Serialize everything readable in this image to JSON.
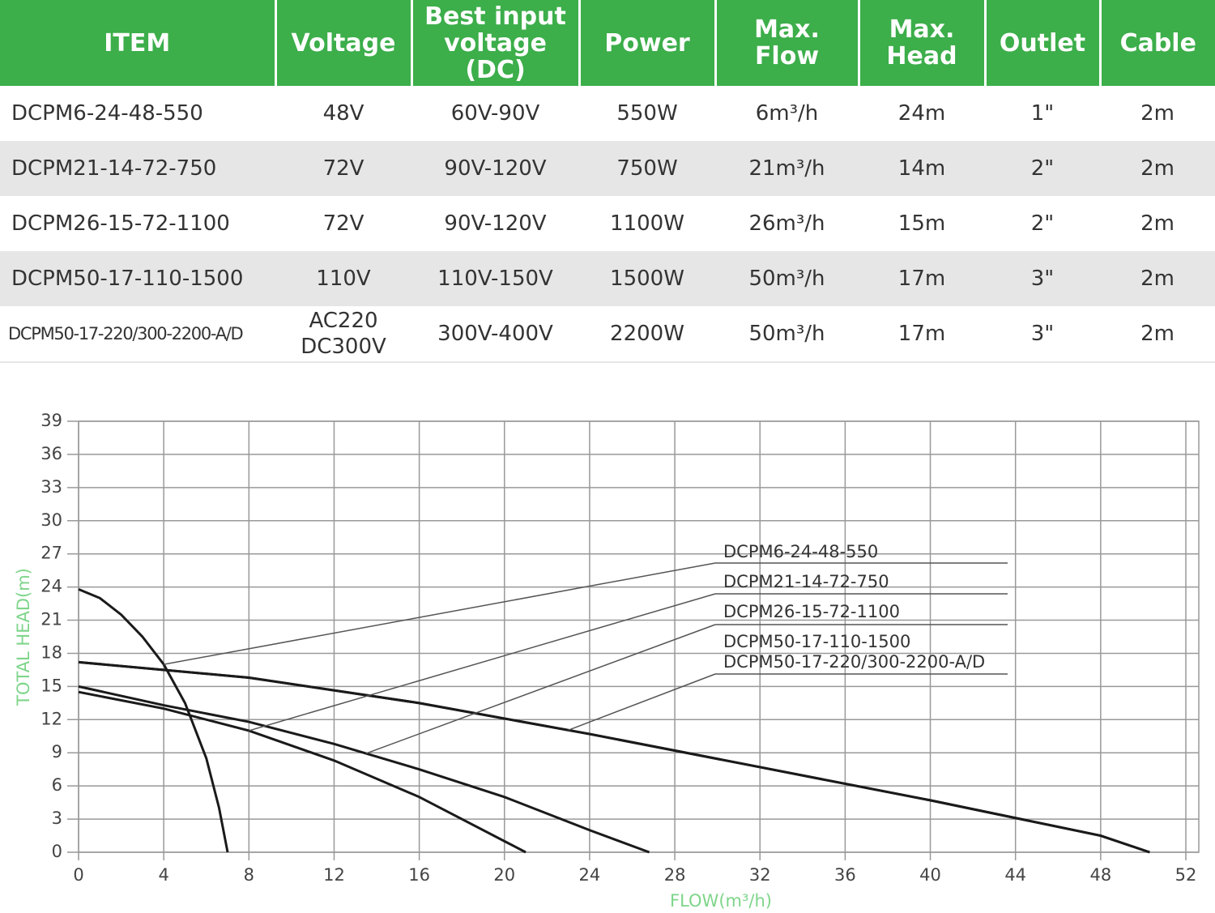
{
  "table": {
    "header": [
      [
        "ITEM"
      ],
      [
        "Voltage"
      ],
      [
        "Best input",
        "voltage",
        "(DC)"
      ],
      [
        "Power"
      ],
      [
        "Max.",
        "Flow"
      ],
      [
        "Max.",
        "Head"
      ],
      [
        "Outlet"
      ],
      [
        "Cable"
      ]
    ],
    "rows": [
      [
        [
          "DCPM6-24-48-550"
        ],
        [
          "48V"
        ],
        [
          "60V-90V"
        ],
        [
          "550W"
        ],
        [
          "6m³/h"
        ],
        [
          "24m"
        ],
        [
          "1\""
        ],
        [
          "2m"
        ]
      ],
      [
        [
          "DCPM21-14-72-750"
        ],
        [
          "72V"
        ],
        [
          "90V-120V"
        ],
        [
          "750W"
        ],
        [
          "21m³/h"
        ],
        [
          "14m"
        ],
        [
          "2\""
        ],
        [
          "2m"
        ]
      ],
      [
        [
          "DCPM26-15-72-1100"
        ],
        [
          "72V"
        ],
        [
          "90V-120V"
        ],
        [
          "1100W"
        ],
        [
          "26m³/h"
        ],
        [
          "15m"
        ],
        [
          "2\""
        ],
        [
          "2m"
        ]
      ],
      [
        [
          "DCPM50-17-110-1500"
        ],
        [
          "110V"
        ],
        [
          "110V-150V"
        ],
        [
          "1500W"
        ],
        [
          "50m³/h"
        ],
        [
          "17m"
        ],
        [
          "3\""
        ],
        [
          "2m"
        ]
      ],
      [
        [
          "DCPM50-17-220/300-2200-A/D"
        ],
        [
          "AC220",
          "DC300V"
        ],
        [
          "300V-400V"
        ],
        [
          "2200W"
        ],
        [
          "50m³/h"
        ],
        [
          "17m"
        ],
        [
          "3\""
        ],
        [
          "2m"
        ]
      ]
    ]
  },
  "chart_data": {
    "type": "line",
    "x_label": "FLOW(m³/h)",
    "y_label": "TOTAL HEAD(m)",
    "xlim": [
      0,
      52
    ],
    "ylim": [
      0,
      39
    ],
    "xticks": [
      0,
      4,
      8,
      12,
      16,
      20,
      24,
      28,
      32,
      36,
      40,
      44,
      48,
      52
    ],
    "yticks": [
      0,
      3,
      6,
      9,
      12,
      15,
      18,
      21,
      24,
      27,
      30,
      33,
      36,
      39
    ],
    "grid": true,
    "series": [
      {
        "name": "DCPM6-24-48-550",
        "color": "#1a1a1a",
        "x": [
          0,
          1,
          2,
          3,
          4,
          5,
          6,
          6.6,
          7
        ],
        "values": [
          23.8,
          23,
          21.5,
          19.5,
          17,
          13.5,
          8.5,
          4,
          0
        ]
      },
      {
        "name": "DCPM21-14-72-750",
        "color": "#1a1a1a",
        "x": [
          0,
          4,
          8,
          12,
          16,
          20,
          21
        ],
        "values": [
          14.5,
          13,
          11,
          8.3,
          5,
          1,
          0
        ]
      },
      {
        "name": "DCPM26-15-72-1100",
        "color": "#1a1a1a",
        "x": [
          0,
          4,
          8,
          12,
          16,
          20,
          24,
          26.8
        ],
        "values": [
          15,
          13.3,
          11.8,
          9.8,
          7.5,
          5,
          2,
          0
        ]
      },
      {
        "name": "DCPM50-17-110-1500",
        "color": "#1a1a1a",
        "x": [
          0,
          8,
          16,
          24,
          32,
          40,
          48,
          50.3
        ],
        "values": [
          17.2,
          15.8,
          13.5,
          10.7,
          7.7,
          4.7,
          1.5,
          0
        ]
      },
      {
        "name": "DCPM50-17-220/300-2200-A/D",
        "color": "#1a1a1a",
        "x": [
          0,
          8,
          16,
          24,
          32,
          40,
          48,
          50.3
        ],
        "values": [
          17.2,
          15.8,
          13.5,
          10.7,
          7.7,
          4.7,
          1.5,
          0
        ]
      }
    ]
  }
}
